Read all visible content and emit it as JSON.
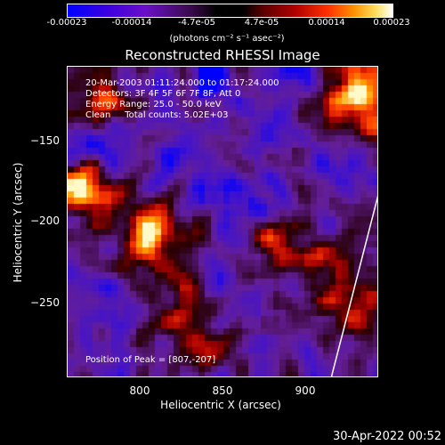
{
  "colorbar": {
    "ticks": [
      "-0.00023",
      "-0.00014",
      "-4.7e-05",
      "4.7e-05",
      "0.00014",
      "0.00023"
    ],
    "units": "(photons cm⁻² s⁻¹ asec⁻²)"
  },
  "title": "Reconstructed RHESSI Image",
  "info": {
    "time_range": "20-Mar-2003 01:11:24.000 to 01:17:24.000",
    "detectors": "Detectors: 3F 4F 5F 6F 7F 8F, Att 0",
    "energy": "Energy Range: 25.0 - 50.0 keV",
    "clean": "Clean     Total counts: 5.02E+03",
    "peak": "Position of Peak = [807,-207]"
  },
  "axes": {
    "xlabel": "Heliocentric X (arcsec)",
    "ylabel": "Heliocentric Y (arcsec)",
    "xticks": [
      "800",
      "850",
      "900"
    ],
    "yticks": [
      "−150",
      "−200",
      "−250"
    ]
  },
  "timestamp": "30-Apr-2022 00:52"
}
